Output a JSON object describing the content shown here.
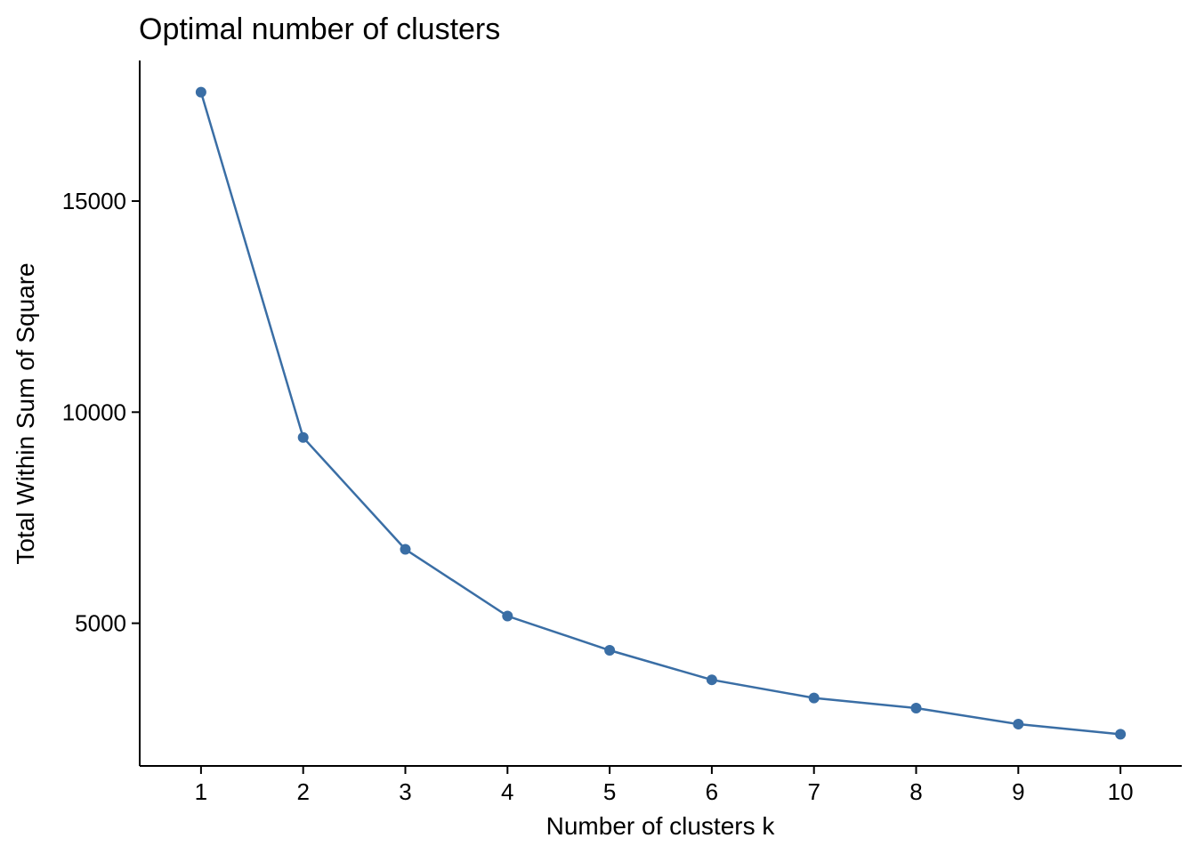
{
  "chart_data": {
    "type": "line",
    "title": "Optimal number of clusters",
    "xlabel": "Number of clusters k",
    "ylabel": "Total Within Sum of Square",
    "x": [
      1,
      2,
      3,
      4,
      5,
      6,
      7,
      8,
      9,
      10
    ],
    "series": [
      {
        "values": [
          17580,
          9400,
          6750,
          5170,
          4360,
          3660,
          3230,
          2990,
          2610,
          2370
        ],
        "color": "#3a6ea5"
      }
    ],
    "x_ticks": [
      "1",
      "2",
      "3",
      "4",
      "5",
      "6",
      "7",
      "8",
      "9",
      "10"
    ],
    "y_ticks": [
      5000,
      10000,
      15000
    ],
    "y_tick_labels": [
      "5000",
      "10000",
      "15000"
    ],
    "xlim": [
      0.4,
      10.6
    ],
    "ylim": [
      1620,
      18330
    ],
    "grid": false,
    "legend": "none"
  }
}
